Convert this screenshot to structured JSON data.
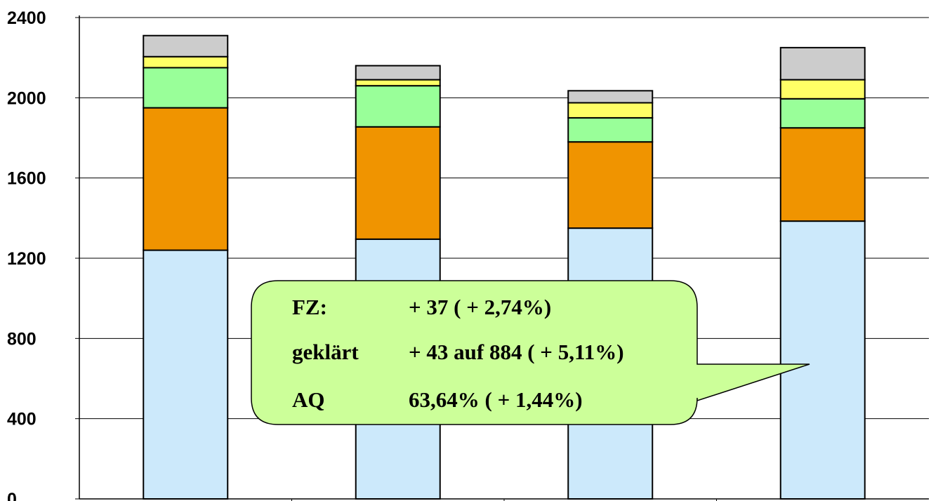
{
  "chart_data": {
    "type": "bar",
    "stacked": true,
    "categories": [
      "",
      "",
      "",
      ""
    ],
    "series": [
      {
        "values": [
          1240,
          1295,
          1350,
          1385
        ],
        "color": "#cce9fb"
      },
      {
        "values": [
          710,
          560,
          430,
          465
        ],
        "color": "#f09400"
      },
      {
        "values": [
          200,
          205,
          120,
          145
        ],
        "color": "#99ff99"
      },
      {
        "values": [
          55,
          30,
          75,
          95
        ],
        "color": "#ffff66"
      },
      {
        "values": [
          105,
          70,
          60,
          160
        ],
        "color": "#cccccc"
      }
    ],
    "ylim": [
      0,
      2400
    ],
    "yticks": [
      "0",
      "400",
      "800",
      "1200",
      "1600",
      "2000",
      "2400"
    ],
    "grid": true,
    "title": "",
    "xlabel": "",
    "ylabel": ""
  },
  "callout": {
    "rows": [
      {
        "label": "FZ:",
        "value": "+ 37 ( + 2,74%)"
      },
      {
        "label": "geklärt",
        "value": "+ 43 auf 884 ( + 5,11%)"
      },
      {
        "label": "AQ",
        "value": "63,64% ( + 1,44%)"
      }
    ],
    "fill_color": "#ccff99"
  }
}
